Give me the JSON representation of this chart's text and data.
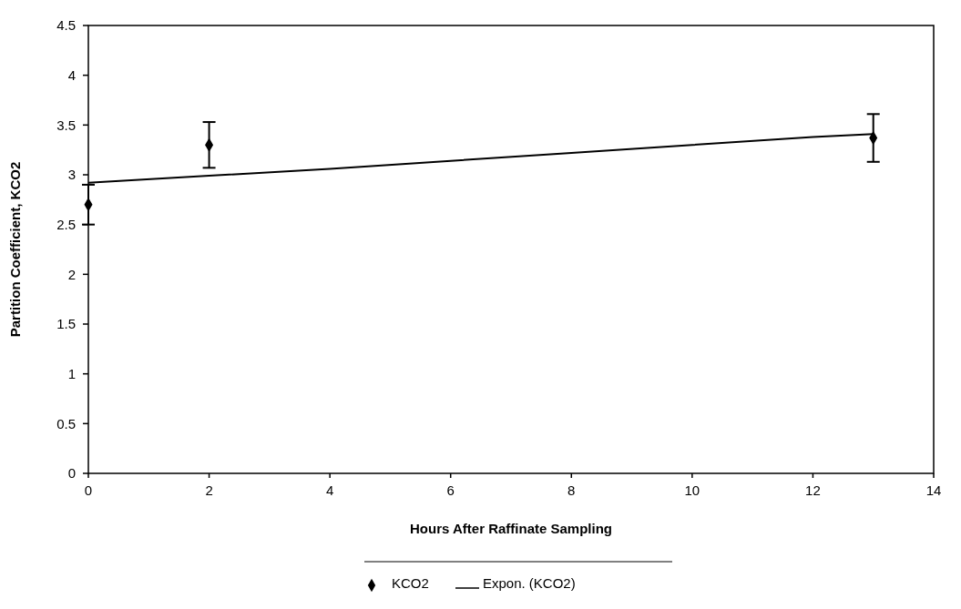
{
  "chart_data": {
    "type": "scatter",
    "xlabel": "Hours After Raffinate Sampling",
    "ylabel": "Partition Coefficient, KCO2",
    "xlim": [
      0,
      14
    ],
    "xticks": [
      0,
      2,
      4,
      6,
      8,
      10,
      12,
      14
    ],
    "ylim": [
      0,
      4.5
    ],
    "yticks": [
      0,
      0.5,
      1,
      1.5,
      2,
      2.5,
      3,
      3.5,
      4,
      4.5
    ],
    "grid": false,
    "legend": "bottom",
    "series": [
      {
        "name": "KCO2",
        "color": "#000000",
        "marker": "diamond",
        "x": [
          0,
          2,
          13
        ],
        "values": [
          2.7,
          3.3,
          3.37
        ],
        "errors": [
          0.2,
          0.23,
          0.24
        ]
      },
      {
        "name": "Expon. (KCO2)",
        "type": "line",
        "color": "#000000",
        "marker": "none",
        "line_style": "solid",
        "x": [
          0,
          2,
          4,
          6,
          8,
          10,
          12,
          13
        ],
        "values": [
          2.92,
          2.99,
          3.06,
          3.14,
          3.22,
          3.3,
          3.38,
          3.41
        ]
      }
    ]
  }
}
